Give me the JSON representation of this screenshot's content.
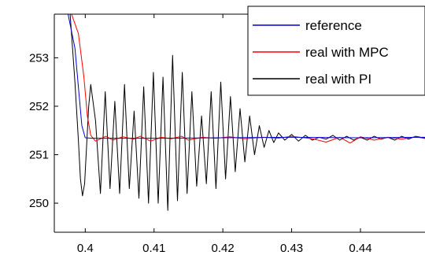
{
  "chart_data": {
    "type": "line",
    "title": "",
    "xlabel": "",
    "ylabel": "",
    "xlim": [
      0.3955,
      0.4495
    ],
    "ylim": [
      249.4,
      253.9
    ],
    "xticks": [
      0.4,
      0.41,
      0.42,
      0.43,
      0.44
    ],
    "xtick_labels": [
      "0.4",
      "0.41",
      "0.42",
      "0.43",
      "0.44"
    ],
    "yticks": [
      250,
      251,
      252,
      253
    ],
    "ytick_labels": [
      "250",
      "251",
      "252",
      "253"
    ],
    "grid": false,
    "legend_position": "top-right",
    "series": [
      {
        "name": "reference",
        "color": "#0000cc",
        "description": "step down from above 253.9 to about 251.35 near x=0.4",
        "x": [
          0.3955,
          0.3975,
          0.3985,
          0.399,
          0.3995,
          0.4,
          0.401,
          0.41,
          0.42,
          0.43,
          0.44,
          0.4495
        ],
        "y": [
          253.9,
          253.9,
          253.2,
          252.4,
          251.6,
          251.35,
          251.34,
          251.34,
          251.35,
          251.36,
          251.35,
          251.36
        ]
      },
      {
        "name": "real with MPC",
        "color": "#ff0000",
        "x": [
          0.3955,
          0.398,
          0.399,
          0.3998,
          0.4003,
          0.4008,
          0.4015,
          0.403,
          0.404,
          0.4055,
          0.407,
          0.408,
          0.4095,
          0.411,
          0.4125,
          0.414,
          0.415,
          0.417,
          0.419,
          0.421,
          0.423,
          0.426,
          0.428,
          0.43,
          0.433,
          0.435,
          0.437,
          0.4385,
          0.44,
          0.442,
          0.444,
          0.446,
          0.448,
          0.4495
        ],
        "y": [
          253.9,
          253.9,
          253.5,
          252.6,
          251.8,
          251.4,
          251.28,
          251.38,
          251.3,
          251.37,
          251.32,
          251.38,
          251.28,
          251.36,
          251.33,
          251.38,
          251.3,
          251.36,
          251.34,
          251.37,
          251.33,
          251.36,
          251.34,
          251.38,
          251.33,
          251.26,
          251.36,
          251.24,
          251.37,
          251.3,
          251.36,
          251.32,
          251.37,
          251.33
        ]
      },
      {
        "name": "real with PI",
        "color": "#000000",
        "x": [
          0.3955,
          0.3978,
          0.3985,
          0.399,
          0.3993,
          0.3996,
          0.3999,
          0.4002,
          0.4005,
          0.4008,
          0.4015,
          0.4022,
          0.4029,
          0.4036,
          0.4043,
          0.405,
          0.4057,
          0.4064,
          0.4071,
          0.4078,
          0.4085,
          0.4092,
          0.4099,
          0.4106,
          0.4113,
          0.412,
          0.4127,
          0.4134,
          0.4141,
          0.4148,
          0.4155,
          0.4162,
          0.4169,
          0.4176,
          0.4183,
          0.419,
          0.4197,
          0.4204,
          0.4211,
          0.4218,
          0.4225,
          0.4232,
          0.4239,
          0.4246,
          0.4253,
          0.426,
          0.4267,
          0.4274,
          0.4281,
          0.429,
          0.43,
          0.431,
          0.432,
          0.433,
          0.434,
          0.435,
          0.436,
          0.437,
          0.438,
          0.439,
          0.44,
          0.441,
          0.442,
          0.443,
          0.444,
          0.445,
          0.446,
          0.447,
          0.448,
          0.4495
        ],
        "y": [
          253.9,
          253.9,
          252.5,
          251.3,
          250.5,
          250.15,
          250.4,
          251.2,
          252.0,
          252.45,
          251.7,
          250.2,
          252.3,
          250.3,
          252.1,
          250.2,
          252.45,
          250.3,
          251.9,
          250.1,
          252.4,
          250.0,
          252.7,
          250.0,
          252.6,
          249.85,
          253.05,
          250.05,
          252.7,
          250.2,
          252.3,
          250.35,
          251.8,
          250.4,
          252.3,
          250.3,
          252.5,
          250.5,
          252.2,
          250.65,
          251.95,
          250.85,
          251.8,
          251.0,
          251.6,
          251.15,
          251.5,
          251.25,
          251.45,
          251.3,
          251.42,
          251.28,
          251.4,
          251.3,
          251.36,
          251.32,
          251.4,
          251.3,
          251.38,
          251.3,
          251.36,
          251.3,
          251.38,
          251.32,
          251.36,
          251.3,
          251.38,
          251.32,
          251.38,
          251.34
        ]
      }
    ]
  }
}
